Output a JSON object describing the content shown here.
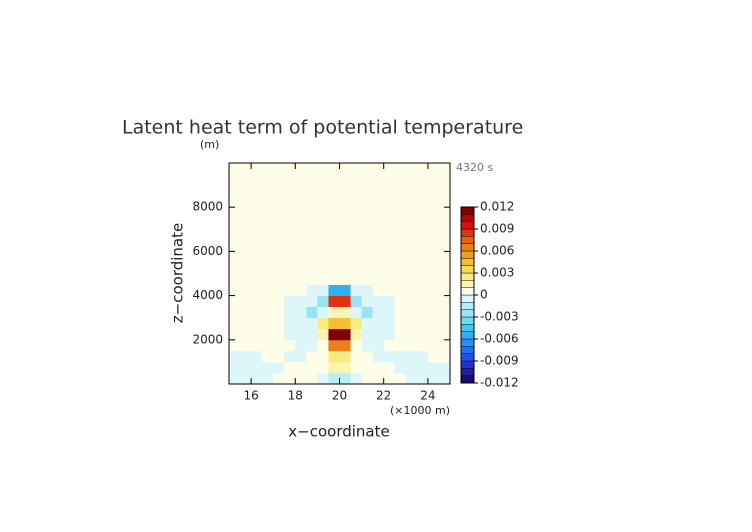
{
  "chart_data": {
    "type": "heatmap",
    "title": "Latent heat term of potential temperature",
    "y_unit": "(m)",
    "time_label": "4320 s",
    "x_unit": "(×1000 m)",
    "xlabel": "x−coordinate",
    "ylabel": "z−coordinate",
    "xlim": [
      15,
      25
    ],
    "ylim": [
      0,
      10000
    ],
    "xticks": [
      16,
      18,
      20,
      22,
      24
    ],
    "yticks": [
      2000,
      4000,
      6000,
      8000
    ],
    "x": [
      15.25,
      15.75,
      16.25,
      16.75,
      17.25,
      17.75,
      18.25,
      18.75,
      19.25,
      19.75,
      20.25,
      20.75,
      21.25,
      21.75,
      22.25,
      22.75,
      23.25,
      23.75,
      24.25,
      24.75
    ],
    "y": [
      250,
      750,
      1250,
      1750,
      2250,
      2750,
      3250,
      3750,
      4250,
      4750,
      5250,
      5750,
      6250,
      6750,
      7250,
      7750,
      8250,
      8750,
      9250,
      9750
    ],
    "z": [
      [
        -0.001,
        -0.001,
        -0.001,
        -0.001,
        0,
        0,
        0,
        0,
        -0.001,
        -0.002,
        -0.002,
        -0.001,
        0,
        0,
        0,
        0,
        -0.001,
        -0.001,
        -0.001,
        -0.001
      ],
      [
        -0.001,
        -0.001,
        -0.001,
        -0.001,
        -0.001,
        0,
        0,
        0,
        0,
        0.001,
        0.001,
        0,
        0,
        0,
        0,
        -0.001,
        -0.001,
        -0.001,
        -0.001,
        -0.001
      ],
      [
        -0.001,
        -0.001,
        -0.001,
        0,
        0,
        -0.001,
        -0.001,
        0,
        0,
        0.002,
        0.002,
        0,
        0,
        -0.001,
        -0.001,
        -0.001,
        -0.001,
        -0.001,
        0,
        0
      ],
      [
        0,
        0,
        0,
        0,
        0,
        0,
        -0.001,
        -0.001,
        0,
        0.006,
        0.006,
        0,
        -0.001,
        -0.001,
        0,
        0,
        0,
        0,
        0,
        0
      ],
      [
        0,
        0,
        0,
        0,
        0,
        -0.001,
        -0.001,
        -0.001,
        0.001,
        0.011,
        0.011,
        0.001,
        -0.001,
        -0.001,
        -0.001,
        0,
        0,
        0,
        0,
        0
      ],
      [
        0,
        0,
        0,
        0,
        0,
        -0.001,
        -0.001,
        -0.001,
        0.002,
        0.004,
        0.004,
        0.002,
        -0.001,
        -0.001,
        -0.001,
        0,
        0,
        0,
        0,
        0
      ],
      [
        0,
        0,
        0,
        0,
        0,
        -0.001,
        -0.001,
        -0.003,
        -0.001,
        0.001,
        0.001,
        -0.001,
        -0.003,
        -0.001,
        -0.001,
        0,
        0,
        0,
        0,
        0
      ],
      [
        0,
        0,
        0,
        0,
        0,
        -0.001,
        -0.001,
        -0.001,
        -0.003,
        0.008,
        0.008,
        -0.003,
        -0.001,
        -0.001,
        -0.001,
        0,
        0,
        0,
        0,
        0
      ],
      [
        0,
        0,
        0,
        0,
        0,
        0,
        0,
        -0.001,
        -0.001,
        -0.006,
        -0.006,
        -0.001,
        -0.001,
        0,
        0,
        0,
        0,
        0,
        0,
        0
      ],
      [
        0,
        0,
        0,
        0,
        0,
        0,
        0,
        0,
        0,
        0,
        0,
        0,
        0,
        0,
        0,
        0,
        0,
        0,
        0,
        0
      ],
      [
        0,
        0,
        0,
        0,
        0,
        0,
        0,
        0,
        0,
        0,
        0,
        0,
        0,
        0,
        0,
        0,
        0,
        0,
        0,
        0
      ],
      [
        0,
        0,
        0,
        0,
        0,
        0,
        0,
        0,
        0,
        0,
        0,
        0,
        0,
        0,
        0,
        0,
        0,
        0,
        0,
        0
      ],
      [
        0,
        0,
        0,
        0,
        0,
        0,
        0,
        0,
        0,
        0,
        0,
        0,
        0,
        0,
        0,
        0,
        0,
        0,
        0,
        0
      ],
      [
        0,
        0,
        0,
        0,
        0,
        0,
        0,
        0,
        0,
        0,
        0,
        0,
        0,
        0,
        0,
        0,
        0,
        0,
        0,
        0
      ],
      [
        0,
        0,
        0,
        0,
        0,
        0,
        0,
        0,
        0,
        0,
        0,
        0,
        0,
        0,
        0,
        0,
        0,
        0,
        0,
        0
      ],
      [
        0,
        0,
        0,
        0,
        0,
        0,
        0,
        0,
        0,
        0,
        0,
        0,
        0,
        0,
        0,
        0,
        0,
        0,
        0,
        0
      ],
      [
        0,
        0,
        0,
        0,
        0,
        0,
        0,
        0,
        0,
        0,
        0,
        0,
        0,
        0,
        0,
        0,
        0,
        0,
        0,
        0
      ],
      [
        0,
        0,
        0,
        0,
        0,
        0,
        0,
        0,
        0,
        0,
        0,
        0,
        0,
        0,
        0,
        0,
        0,
        0,
        0,
        0
      ],
      [
        0,
        0,
        0,
        0,
        0,
        0,
        0,
        0,
        0,
        0,
        0,
        0,
        0,
        0,
        0,
        0,
        0,
        0,
        0,
        0
      ],
      [
        0,
        0,
        0,
        0,
        0,
        0,
        0,
        0,
        0,
        0,
        0,
        0,
        0,
        0,
        0,
        0,
        0,
        0,
        0,
        0
      ]
    ],
    "colorbar": {
      "levels": [
        -0.012,
        -0.011,
        -0.01,
        -0.009,
        -0.008,
        -0.007,
        -0.006,
        -0.005,
        -0.004,
        -0.003,
        -0.002,
        -0.001,
        0,
        0.001,
        0.002,
        0.003,
        0.004,
        0.005,
        0.006,
        0.007,
        0.008,
        0.009,
        0.01,
        0.011,
        0.012
      ],
      "colors": [
        "#1a0a6e",
        "#1f1fa0",
        "#2432d0",
        "#2050f0",
        "#2070ff",
        "#2a90ff",
        "#30b0f0",
        "#40c8f0",
        "#70d8f0",
        "#98e4f4",
        "#b8eef8",
        "#dcf6fa",
        "#fdfde8",
        "#fbf5b0",
        "#f8ec80",
        "#f6dc50",
        "#f4c030",
        "#f0a020",
        "#ec8018",
        "#e86010",
        "#e43010",
        "#d81010",
        "#b00808",
        "#800000"
      ],
      "ticks": [
        0.012,
        0.009,
        0.006,
        0.003,
        0,
        -0.003,
        -0.006,
        -0.009,
        -0.012
      ]
    }
  }
}
